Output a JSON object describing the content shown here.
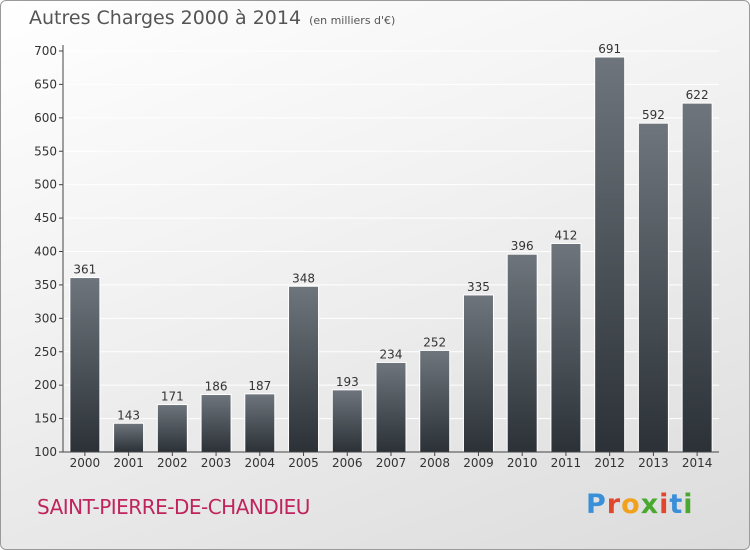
{
  "title": "Autres Charges 2000 à 2014",
  "subtitle": "(en milliers d'€)",
  "city": "SAINT-PIERRE-DE-CHANDIEU",
  "brand": {
    "text": "Proxiti",
    "letter_colors": [
      "#3a8fd8",
      "#e0472c",
      "#f2a11d",
      "#4aa82f",
      "#e0472c",
      "#3a8fd8",
      "#4aa82f"
    ]
  },
  "colors": {
    "bar_top": "#6e757c",
    "bar_bottom": "#2b3137",
    "axis": "#444444",
    "grid": "#ffffff"
  },
  "chart_data": {
    "type": "bar",
    "title": "Autres Charges 2000 à 2014",
    "subtitle": "(en milliers d'€)",
    "categories": [
      "2000",
      "2001",
      "2002",
      "2003",
      "2004",
      "2005",
      "2006",
      "2007",
      "2008",
      "2009",
      "2010",
      "2011",
      "2012",
      "2013",
      "2014"
    ],
    "values": [
      361,
      143,
      171,
      186,
      187,
      348,
      193,
      234,
      252,
      335,
      396,
      412,
      691,
      592,
      622
    ],
    "ylim": [
      100,
      700
    ],
    "yticks": [
      100,
      150,
      200,
      250,
      300,
      350,
      400,
      450,
      500,
      550,
      600,
      650,
      700
    ],
    "grid": true,
    "data_labels": true
  }
}
